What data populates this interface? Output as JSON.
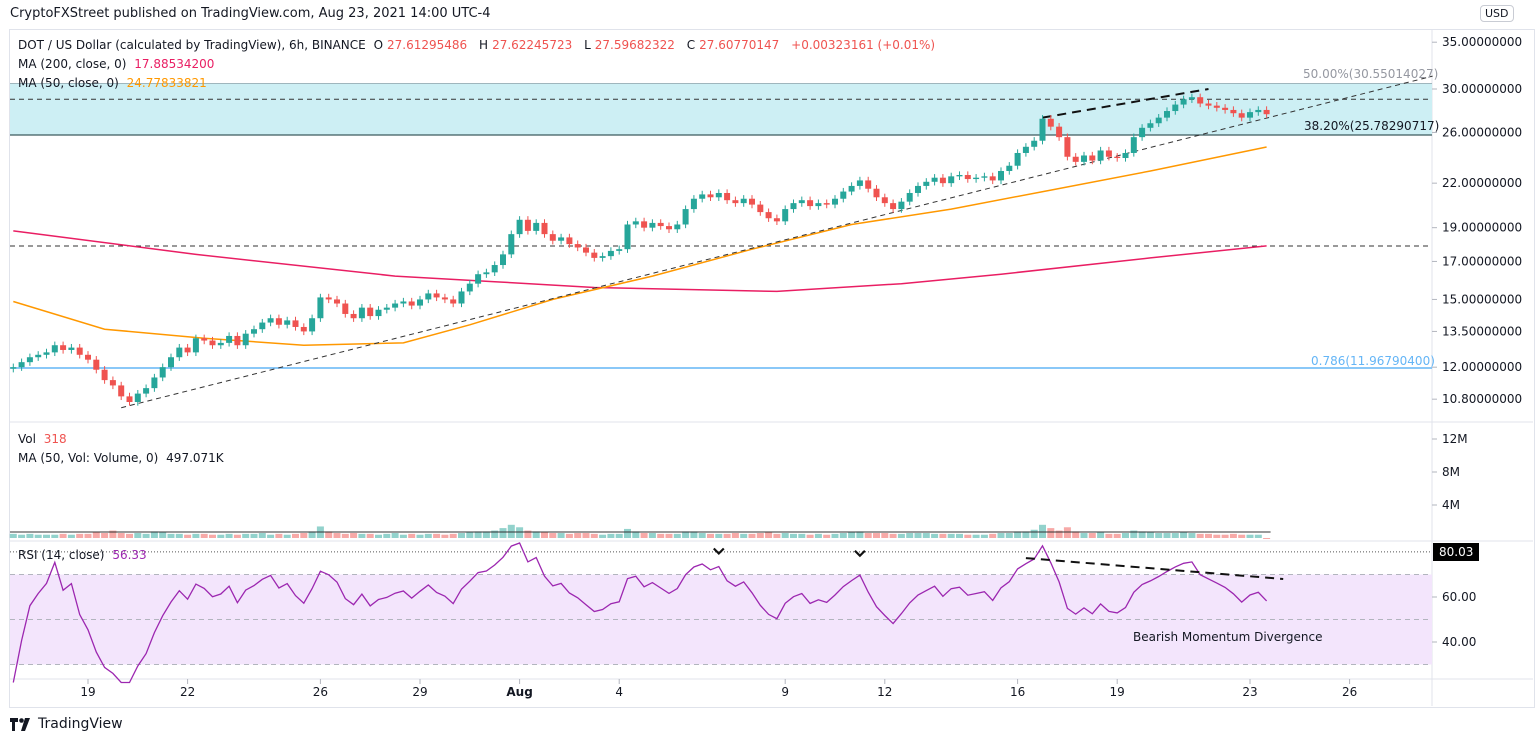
{
  "header": {
    "published": "CryptoFXStreet published on TradingView.com, Aug 23, 2021 14:00 UTC-4"
  },
  "legend": {
    "symbol": "DOT / US Dollar (calculated by TradingView), 6h, BINANCE",
    "o_label": "O",
    "o": "27.61295486",
    "h_label": "H",
    "h": "27.62245723",
    "l_label": "L",
    "l": "27.59682322",
    "c_label": "C",
    "c": "27.60770147",
    "change": "+0.00323161 (+0.01%)",
    "ma200_label": "MA (200, close, 0)",
    "ma200_value": "17.88534200",
    "ma50_label": "MA (50, close, 0)",
    "ma50_value": "24.77833821",
    "vol_label": "Vol",
    "vol_value": "318",
    "vol_ma_label": "MA (50, Vol: Volume, 0)",
    "vol_ma_value": "497.071K",
    "rsi_label": "RSI (14, close)",
    "rsi_value": "56.33"
  },
  "axis": {
    "currency": "USD",
    "price_ticks": [
      "35.00000000",
      "30.00000000",
      "26.00000000",
      "22.00000000",
      "19.00000000",
      "17.00000000",
      "15.00000000",
      "13.50000000",
      "12.00000000",
      "10.80000000"
    ],
    "volume_ticks": [
      "12M",
      "8M",
      "4M"
    ],
    "rsi_ticks": [
      "60.00",
      "40.00"
    ],
    "rsi_marker": "80.03",
    "time_ticks": [
      {
        "label": "19",
        "date": "2021-07-19"
      },
      {
        "label": "22",
        "date": "2021-07-22"
      },
      {
        "label": "26",
        "date": "2021-07-26"
      },
      {
        "label": "29",
        "date": "2021-07-29"
      },
      {
        "label": "Aug",
        "date": "2021-08-01"
      },
      {
        "label": "4",
        "date": "2021-08-04"
      },
      {
        "label": "9",
        "date": "2021-08-09"
      },
      {
        "label": "12",
        "date": "2021-08-12"
      },
      {
        "label": "16",
        "date": "2021-08-16"
      },
      {
        "label": "19",
        "date": "2021-08-19"
      },
      {
        "label": "23",
        "date": "2021-08-23"
      },
      {
        "label": "26",
        "date": "2021-08-26"
      }
    ]
  },
  "annotations": {
    "fib_50": "50.00%(30.55014027)",
    "fib_382": "38.20%(25.78290717)",
    "fib_786": "0.786(11.96790400)",
    "divergence_note": "Bearish Momentum Divergence"
  },
  "colors": {
    "up": "#26a69a",
    "down": "#ef5350",
    "ma200": "#e91e63",
    "ma50": "#ff9800",
    "rsi": "#9c27b0",
    "rsi_band": "#f3e5fc",
    "fib_zone": "#cdeff4",
    "fib_786": "#64b5f6"
  },
  "chart_data": {
    "type": "candlestick",
    "symbol": "DOT/USD",
    "interval": "6h",
    "y_scale": "log",
    "ylim": [
      10.2,
      36
    ],
    "first_candle": "2021-07-16T18:00",
    "closes": [
      12.0,
      12.2,
      12.4,
      12.5,
      12.6,
      12.9,
      12.7,
      12.8,
      12.5,
      12.3,
      11.9,
      11.5,
      11.3,
      10.9,
      10.7,
      11.0,
      11.2,
      11.6,
      12.0,
      12.4,
      12.8,
      12.6,
      13.2,
      13.1,
      12.9,
      13.0,
      13.3,
      12.9,
      13.4,
      13.6,
      13.9,
      14.1,
      13.8,
      14.0,
      13.7,
      13.5,
      14.1,
      15.1,
      15.0,
      14.8,
      14.3,
      14.1,
      14.6,
      14.2,
      14.5,
      14.6,
      14.8,
      14.9,
      14.7,
      15.0,
      15.3,
      15.1,
      15.0,
      14.8,
      15.4,
      15.8,
      16.3,
      16.4,
      16.8,
      17.4,
      18.6,
      19.5,
      18.8,
      19.3,
      18.6,
      18.2,
      18.4,
      18.0,
      17.8,
      17.5,
      17.2,
      17.3,
      17.6,
      17.7,
      19.2,
      19.4,
      19.0,
      19.3,
      19.1,
      18.9,
      19.2,
      20.2,
      20.9,
      21.2,
      21.0,
      21.3,
      20.8,
      20.6,
      20.9,
      20.5,
      20.0,
      19.6,
      19.4,
      20.2,
      20.6,
      20.8,
      20.4,
      20.6,
      20.5,
      20.9,
      21.4,
      21.8,
      22.2,
      21.6,
      21.0,
      20.6,
      20.2,
      20.7,
      21.3,
      21.8,
      22.1,
      22.4,
      22.0,
      22.5,
      22.6,
      22.3,
      22.4,
      22.5,
      22.2,
      22.9,
      23.3,
      24.3,
      24.8,
      25.3,
      27.2,
      26.5,
      25.6,
      24.0,
      23.6,
      24.1,
      23.7,
      24.5,
      24.0,
      23.9,
      24.3,
      25.6,
      26.4,
      26.8,
      27.3,
      27.9,
      28.5,
      29.0,
      29.2,
      28.6,
      28.4,
      28.2,
      28.0,
      27.7,
      27.3,
      27.8,
      28.0,
      27.61
    ],
    "volumes_millions": [
      0.5,
      0.4,
      0.5,
      0.4,
      0.4,
      0.4,
      0.5,
      0.4,
      0.5,
      0.5,
      0.7,
      0.6,
      0.9,
      0.6,
      0.5,
      0.6,
      0.5,
      0.8,
      0.7,
      0.5,
      0.5,
      0.4,
      0.5,
      0.5,
      0.4,
      0.4,
      0.5,
      0.4,
      0.5,
      0.5,
      0.6,
      0.4,
      0.5,
      0.4,
      0.5,
      0.6,
      0.8,
      1.4,
      0.8,
      0.6,
      0.5,
      0.6,
      0.5,
      0.5,
      0.4,
      0.5,
      0.6,
      0.4,
      0.5,
      0.4,
      0.5,
      0.5,
      0.4,
      0.5,
      0.6,
      0.7,
      0.8,
      0.8,
      0.9,
      1.2,
      1.6,
      1.3,
      0.9,
      0.8,
      0.7,
      0.6,
      0.6,
      0.5,
      0.6,
      0.6,
      0.5,
      0.4,
      0.5,
      0.5,
      1.1,
      0.8,
      0.6,
      0.6,
      0.5,
      0.5,
      0.5,
      0.8,
      0.8,
      0.6,
      0.5,
      0.5,
      0.5,
      0.6,
      0.5,
      0.5,
      0.6,
      0.7,
      0.5,
      0.6,
      0.5,
      0.5,
      0.4,
      0.5,
      0.4,
      0.5,
      0.6,
      0.7,
      0.8,
      0.6,
      0.6,
      0.6,
      0.5,
      0.5,
      0.6,
      0.6,
      0.6,
      0.5,
      0.5,
      0.5,
      0.5,
      0.4,
      0.4,
      0.4,
      0.5,
      0.6,
      0.6,
      0.8,
      0.8,
      1.0,
      1.6,
      1.2,
      0.9,
      1.3,
      0.8,
      0.6,
      0.6,
      0.7,
      0.5,
      0.5,
      0.6,
      0.9,
      0.8,
      0.7,
      0.6,
      0.6,
      0.6,
      0.7,
      0.6,
      0.5,
      0.5,
      0.4,
      0.4,
      0.5,
      0.4,
      0.4,
      0.4,
      0.000318
    ],
    "ma200": [
      [
        "2021-07-16T18:00",
        18.8
      ],
      [
        "2021-07-22T06:00",
        17.4
      ],
      [
        "2021-07-28T06:00",
        16.2
      ],
      [
        "2021-07-31T06:00",
        15.9
      ],
      [
        "2021-08-03T06:00",
        15.6
      ],
      [
        "2021-08-08T18:00",
        15.4
      ],
      [
        "2021-08-12T12:00",
        15.8
      ],
      [
        "2021-08-15T12:00",
        16.3
      ],
      [
        "2021-08-20T00:00",
        17.2
      ],
      [
        "2021-08-23T12:00",
        17.89
      ]
    ],
    "ma50": [
      [
        "2021-07-16T18:00",
        14.9
      ],
      [
        "2021-07-19T12:00",
        13.6
      ],
      [
        "2021-07-22T12:00",
        13.2
      ],
      [
        "2021-07-25T12:00",
        12.9
      ],
      [
        "2021-07-28T12:00",
        13.0
      ],
      [
        "2021-07-30T12:00",
        13.8
      ],
      [
        "2021-08-02T00:00",
        15.0
      ],
      [
        "2021-08-05T00:00",
        16.2
      ],
      [
        "2021-08-08T00:00",
        17.7
      ],
      [
        "2021-08-11T00:00",
        19.2
      ],
      [
        "2021-08-14T00:00",
        20.2
      ],
      [
        "2021-08-17T00:00",
        21.5
      ],
      [
        "2021-08-20T00:00",
        22.9
      ],
      [
        "2021-08-23T12:00",
        24.78
      ]
    ],
    "levels": {
      "fib_50": 30.55014027,
      "fib_382": 25.78290717,
      "fib_786": 11.967904,
      "dashed_resistance": 29.0,
      "dashed_ma200_level": 17.885342
    },
    "trendlines": {
      "rising_support": [
        [
          "2021-07-20T00:00",
          10.5
        ],
        [
          "2021-08-28T12:00",
          31.3
        ]
      ],
      "upper_highs": [
        [
          "2021-08-16T18:00",
          27.3
        ],
        [
          "2021-08-21T18:00",
          30.0
        ]
      ],
      "rsi_divergence": [
        [
          "2021-08-16T06:00",
          77.3
        ],
        [
          "2021-08-24T00:00",
          68.0
        ]
      ]
    },
    "rsi_markers": [
      [
        "2021-08-07T00:00",
        74
      ],
      [
        "2021-08-11T06:00",
        73
      ]
    ],
    "rsi_bands": [
      30,
      50,
      70
    ],
    "rsi_ylim": [
      20,
      85
    ]
  }
}
